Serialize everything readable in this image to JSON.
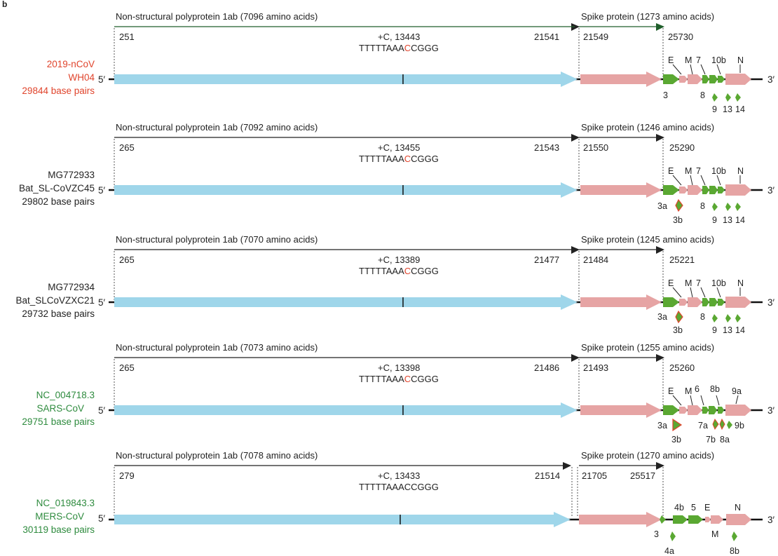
{
  "figure_letter": "b",
  "prime5": "5′",
  "prime3": "3′",
  "colors": {
    "orf1ab": "#9fd6ea",
    "spike": "#e6a4a4",
    "accessory": "#5aa832",
    "mutation": "#e0442c",
    "red_label": "#e0442c",
    "black_label": "#222222",
    "green_label": "#2e8b3e"
  },
  "genomes": [
    {
      "label_lines": [
        "2019-nCoV",
        "WH04",
        "29844 base pairs"
      ],
      "label_color": "red",
      "nsp_title": "Non-structural polyprotein 1ab (7096 amino acids)",
      "spike_title": "Spike protein (1273 amino acids)",
      "start": "251",
      "mutation": "+C, 13443",
      "seq_pre": "TTTTTAAA",
      "seq_c": "C",
      "seq_post": "CGGG",
      "seq_c_red": true,
      "nsp_end": "21541",
      "spike_start": "21549",
      "spike_end": "25730",
      "top_genes": [
        "E",
        "M",
        "7",
        "10b",
        "N"
      ],
      "bottom_genes": [
        "3",
        "8"
      ],
      "lower_genes": [
        "9",
        "13",
        "14"
      ]
    },
    {
      "label_lines": [
        "MG772933",
        "Bat_SL-CoVZC45",
        "29802 base pairs"
      ],
      "label_color": "black",
      "nsp_title": "Non-structural polyprotein 1ab  (7092 amino acids)",
      "spike_title": "Spike protein (1246 amino acids)",
      "start": "265",
      "mutation": "+C, 13455",
      "seq_pre": "TTTTTAAA",
      "seq_c": "C",
      "seq_post": "CGGG",
      "seq_c_red": true,
      "nsp_end": "21543",
      "spike_start": "21550",
      "spike_end": "25290",
      "top_genes": [
        "E",
        "M",
        "7",
        "10b",
        "N"
      ],
      "bottom_genes": [
        "3a",
        "8"
      ],
      "lower_genes": [
        "3b",
        "9",
        "13",
        "14"
      ]
    },
    {
      "label_lines": [
        "MG772934",
        "Bat_SLCoVZXC21",
        "29732 base pairs"
      ],
      "label_color": "black",
      "nsp_title": "Non-structural polyprotein 1ab (7070 amino acids)",
      "spike_title": "Spike protein (1245 amino acids)",
      "start": "265",
      "mutation": "+C, 13389",
      "seq_pre": "TTTTTAAA",
      "seq_c": "C",
      "seq_post": "CGGG",
      "seq_c_red": true,
      "nsp_end": "21477",
      "spike_start": "21484",
      "spike_end": "25221",
      "top_genes": [
        "E",
        "M",
        "7",
        "10b",
        "N"
      ],
      "bottom_genes": [
        "3a",
        "8"
      ],
      "lower_genes": [
        "3b",
        "9",
        "13",
        "14"
      ]
    },
    {
      "label_lines": [
        "NC_004718.3",
        "SARS-CoV",
        "29751 base pairs"
      ],
      "label_color": "green",
      "nsp_title": "Non-structural polyprotein 1ab (7073 amino acids)",
      "spike_title": "Spike protein (1255 amino acids)",
      "start": "265",
      "mutation": "+C, 13398",
      "seq_pre": "TTTTTAAA",
      "seq_c": "C",
      "seq_post": "CGGG",
      "seq_c_red": true,
      "nsp_end": "21486",
      "spike_start": "21493",
      "spike_end": "25260",
      "top_genes": [
        "E",
        "M",
        "6",
        "8b",
        "9a"
      ],
      "bottom_genes": [
        "3a",
        "7a",
        "9b"
      ],
      "lower_genes": [
        "3b",
        "7b",
        "8a"
      ]
    },
    {
      "label_lines": [
        "NC_019843.3",
        "MERS-CoV",
        "30119 base pairs"
      ],
      "label_color": "green",
      "nsp_title": "Non-structural polyprotein 1ab (7078 amino acids)",
      "spike_title": "Spike protein (1270 amino acids)",
      "start": "279",
      "mutation": "+C, 13433",
      "seq_pre": "TTTTTAAA",
      "seq_c": "C",
      "seq_post": "CGGG",
      "seq_c_red": false,
      "nsp_end": "21514",
      "spike_start": "21705",
      "spike_end": "25517",
      "top_genes": [
        "4b",
        "5",
        "E",
        "N"
      ],
      "bottom_genes": [
        "3",
        "M"
      ],
      "lower_genes": [
        "4a",
        "8b"
      ]
    }
  ]
}
